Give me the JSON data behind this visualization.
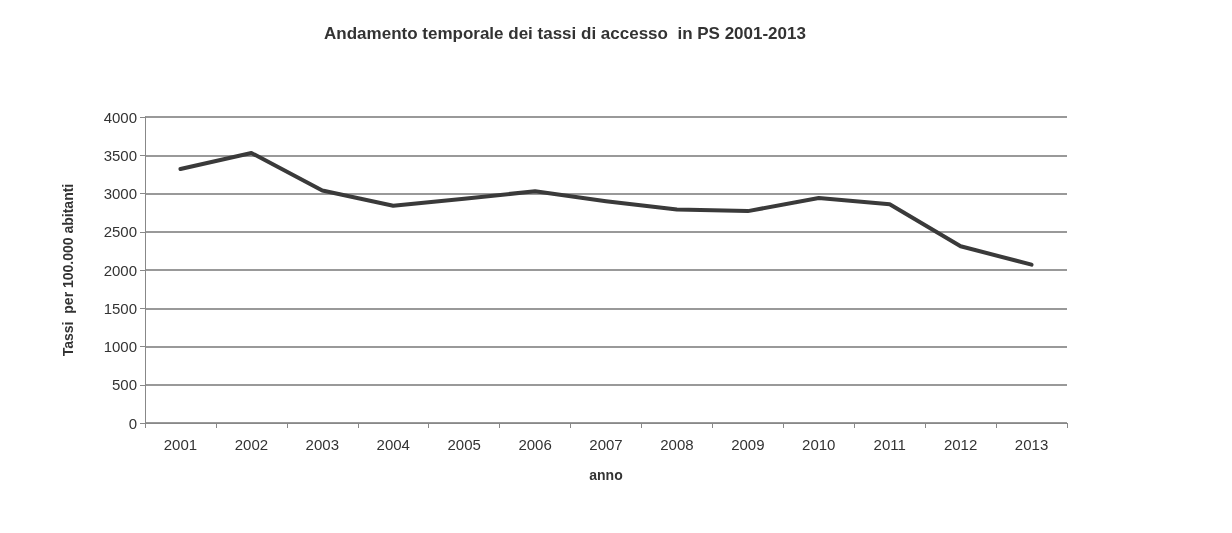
{
  "chart_data": {
    "type": "line",
    "title": "Andamento temporale dei tassi di accesso  in PS 2001-2013",
    "xlabel": "anno",
    "ylabel": "Tassi  per 100.000 abitanti",
    "categories": [
      "2001",
      "2002",
      "2003",
      "2004",
      "2005",
      "2006",
      "2007",
      "2008",
      "2009",
      "2010",
      "2011",
      "2012",
      "2013"
    ],
    "series": [
      {
        "color": "#3a3a3a",
        "values": [
          3320,
          3530,
          3040,
          2840,
          2930,
          3030,
          2900,
          2790,
          2770,
          2940,
          2860,
          2310,
          2070
        ]
      }
    ],
    "ylim": [
      0,
      4000
    ],
    "yticks": [
      0,
      500,
      1000,
      1500,
      2000,
      2500,
      3000,
      3500,
      4000
    ],
    "grid": "y",
    "marker": "none",
    "line_style": "solid"
  }
}
